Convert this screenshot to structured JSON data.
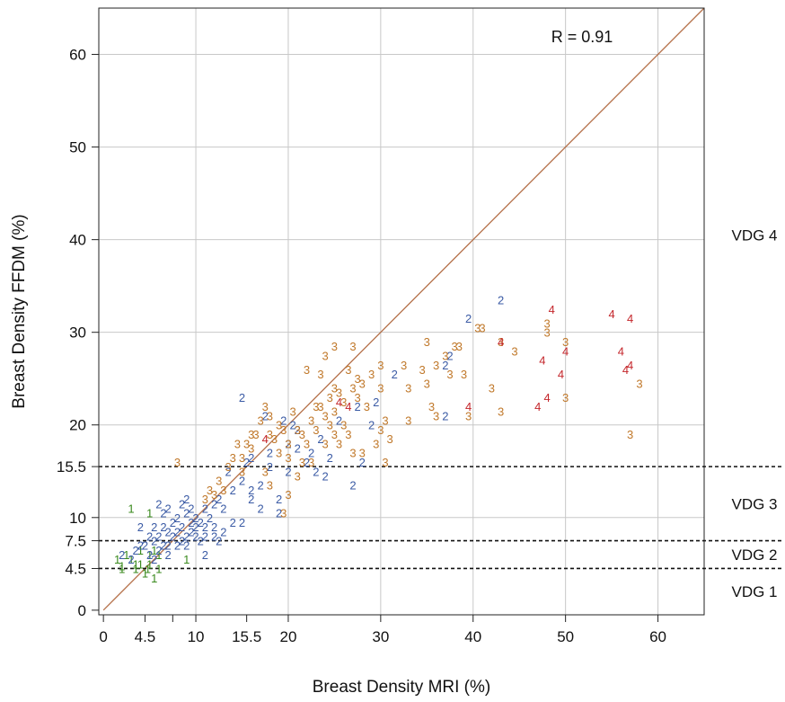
{
  "chart_data": {
    "type": "scatter",
    "xlabel": "Breast Density MRI (%)",
    "ylabel": "Breast Density FFDM (%)",
    "xlim": [
      -0.5,
      65
    ],
    "ylim": [
      -0.5,
      65
    ],
    "x_ticks": [
      {
        "value": 0,
        "label": "0"
      },
      {
        "value": 4.5,
        "label": "4.5"
      },
      {
        "value": 10,
        "label": "10"
      },
      {
        "value": 15.5,
        "label": "15.5"
      },
      {
        "value": 20,
        "label": "20"
      },
      {
        "value": 30,
        "label": "30"
      },
      {
        "value": 40,
        "label": "40"
      },
      {
        "value": 50,
        "label": "50"
      },
      {
        "value": 60,
        "label": "60"
      }
    ],
    "x_minor_ticks": [
      7.5
    ],
    "y_ticks": [
      {
        "value": 0,
        "label": "0"
      },
      {
        "value": 4.5,
        "label": "4.5"
      },
      {
        "value": 7.5,
        "label": "7.5"
      },
      {
        "value": 10,
        "label": "10"
      },
      {
        "value": 15.5,
        "label": "15.5"
      },
      {
        "value": 20,
        "label": "20"
      },
      {
        "value": 30,
        "label": "30"
      },
      {
        "value": 40,
        "label": "40"
      },
      {
        "value": 50,
        "label": "50"
      },
      {
        "value": 60,
        "label": "60"
      }
    ],
    "grid": true,
    "grid_x": [
      10,
      20,
      30,
      40,
      50,
      60
    ],
    "grid_y": [
      10,
      20,
      30,
      40,
      50,
      60
    ],
    "reference_line": {
      "from": [
        0,
        0
      ],
      "to": [
        65,
        65
      ],
      "color": "#b5714a"
    },
    "thresholds_y": [
      4.5,
      7.5,
      15.5
    ],
    "category_labels": [
      {
        "text": "VDG 4",
        "y": 40.5
      },
      {
        "text": "VDG 3",
        "y": 11.5
      },
      {
        "text": "VDG 2",
        "y": 6
      },
      {
        "text": "VDG 1",
        "y": 2
      }
    ],
    "annotation": "R = 0.91",
    "annotation_position": "top-right",
    "series": [
      {
        "name": "1",
        "color": "#3a8a1e",
        "points": [
          [
            1.5,
            5.5
          ],
          [
            2,
            4.8
          ],
          [
            2.5,
            6
          ],
          [
            3,
            5.5
          ],
          [
            3.5,
            4.5
          ],
          [
            3,
            11
          ],
          [
            4,
            6.5
          ],
          [
            4,
            5
          ],
          [
            4.5,
            4
          ],
          [
            5,
            6
          ],
          [
            5,
            5
          ],
          [
            5.5,
            3.5
          ],
          [
            5.5,
            6.5
          ],
          [
            6,
            4.5
          ],
          [
            5,
            10.5
          ],
          [
            9,
            5.5
          ],
          [
            2,
            4.5
          ],
          [
            4.8,
            4.5
          ],
          [
            6,
            6
          ],
          [
            3.5,
            5
          ]
        ]
      },
      {
        "name": "2",
        "color": "#3b5ba5",
        "points": [
          [
            2,
            6
          ],
          [
            3,
            5.5
          ],
          [
            3.5,
            6.5
          ],
          [
            4,
            9
          ],
          [
            4.5,
            7
          ],
          [
            5,
            6
          ],
          [
            5,
            8
          ],
          [
            5.5,
            9
          ],
          [
            5.5,
            7.5
          ],
          [
            6,
            8
          ],
          [
            6,
            6.5
          ],
          [
            6.5,
            10.5
          ],
          [
            6.5,
            9
          ],
          [
            6.5,
            7
          ],
          [
            7,
            8.5
          ],
          [
            7,
            7
          ],
          [
            7.5,
            9.5
          ],
          [
            7.5,
            8
          ],
          [
            8,
            10
          ],
          [
            8,
            8.5
          ],
          [
            8,
            7
          ],
          [
            8.5,
            9
          ],
          [
            8.5,
            7.5
          ],
          [
            9,
            10.5
          ],
          [
            9,
            8
          ],
          [
            9,
            7
          ],
          [
            9.5,
            9.5
          ],
          [
            9.5,
            8.5
          ],
          [
            9.5,
            11
          ],
          [
            10,
            10
          ],
          [
            10,
            8
          ],
          [
            10,
            9
          ],
          [
            10.5,
            9.5
          ],
          [
            10.5,
            7.5
          ],
          [
            11,
            11
          ],
          [
            11,
            9
          ],
          [
            11,
            8
          ],
          [
            11.5,
            10
          ],
          [
            12,
            9
          ],
          [
            12,
            8
          ],
          [
            12,
            11.5
          ],
          [
            12.5,
            12
          ],
          [
            13,
            11
          ],
          [
            13,
            8.5
          ],
          [
            14,
            9.5
          ],
          [
            6,
            11.5
          ],
          [
            7,
            11
          ],
          [
            8.5,
            11.5
          ],
          [
            9,
            12
          ],
          [
            11,
            6
          ],
          [
            12.5,
            7.5
          ],
          [
            15,
            9.5
          ],
          [
            5.5,
            5.5
          ],
          [
            7,
            6
          ],
          [
            4,
            7
          ],
          [
            15,
            14
          ],
          [
            16,
            13
          ],
          [
            16,
            12
          ],
          [
            17,
            13.5
          ],
          [
            18,
            17
          ],
          [
            19,
            12
          ],
          [
            19.5,
            20.5
          ],
          [
            20.5,
            20
          ],
          [
            21,
            19.5
          ],
          [
            20,
            18
          ],
          [
            21,
            17.5
          ],
          [
            22,
            16
          ],
          [
            22.5,
            17
          ],
          [
            23,
            15
          ],
          [
            23.5,
            18.5
          ],
          [
            24,
            14.5
          ],
          [
            24.5,
            16.5
          ],
          [
            25.5,
            20.5
          ],
          [
            27,
            13.5
          ],
          [
            27.5,
            22
          ],
          [
            28,
            16
          ],
          [
            29.5,
            22.5
          ],
          [
            29,
            20
          ],
          [
            31.5,
            25.5
          ],
          [
            15,
            23
          ],
          [
            37,
            26.5
          ],
          [
            37.5,
            27.5
          ],
          [
            37,
            21
          ],
          [
            39.5,
            31.5
          ],
          [
            43,
            33.5
          ],
          [
            16,
            16.5
          ],
          [
            17.5,
            21
          ],
          [
            13.5,
            15
          ],
          [
            19,
            10.5
          ],
          [
            20,
            15
          ],
          [
            14,
            13
          ],
          [
            15.5,
            16
          ],
          [
            17,
            11
          ],
          [
            18,
            15.5
          ]
        ]
      },
      {
        "name": "3",
        "color": "#c0782a",
        "points": [
          [
            8,
            16
          ],
          [
            11,
            12
          ],
          [
            11.5,
            13
          ],
          [
            12,
            12.5
          ],
          [
            12.5,
            14
          ],
          [
            14,
            16.5
          ],
          [
            14.5,
            18
          ],
          [
            15,
            15
          ],
          [
            15.5,
            18
          ],
          [
            16,
            17.5
          ],
          [
            16.5,
            19
          ],
          [
            17,
            20.5
          ],
          [
            17.5,
            22
          ],
          [
            17.5,
            15
          ],
          [
            18,
            19
          ],
          [
            18,
            21
          ],
          [
            18.5,
            18.5
          ],
          [
            19,
            20
          ],
          [
            19,
            17
          ],
          [
            19.5,
            19.5
          ],
          [
            19.5,
            10.5
          ],
          [
            20,
            16.5
          ],
          [
            20,
            12.5
          ],
          [
            20.5,
            21.5
          ],
          [
            21,
            19.5
          ],
          [
            21,
            14.5
          ],
          [
            21.5,
            16
          ],
          [
            22,
            18
          ],
          [
            22,
            26
          ],
          [
            22.5,
            20.5
          ],
          [
            22.5,
            16
          ],
          [
            23,
            19.5
          ],
          [
            23,
            22
          ],
          [
            23.5,
            25.5
          ],
          [
            24,
            21
          ],
          [
            24,
            18
          ],
          [
            24.5,
            23
          ],
          [
            24.5,
            20
          ],
          [
            25,
            24
          ],
          [
            25,
            19
          ],
          [
            25,
            21.5
          ],
          [
            25.5,
            23.5
          ],
          [
            25.5,
            18
          ],
          [
            26,
            22.5
          ],
          [
            26,
            20
          ],
          [
            26.5,
            26
          ],
          [
            26.5,
            19
          ],
          [
            27,
            28.5
          ],
          [
            27,
            17
          ],
          [
            27.5,
            25
          ],
          [
            27.5,
            23
          ],
          [
            28,
            24.5
          ],
          [
            28,
            17
          ],
          [
            28.5,
            22
          ],
          [
            29,
            25.5
          ],
          [
            29.5,
            18
          ],
          [
            30,
            26.5
          ],
          [
            30,
            24
          ],
          [
            30.5,
            20.5
          ],
          [
            30.5,
            16
          ],
          [
            31,
            18.5
          ],
          [
            32.5,
            26.5
          ],
          [
            33,
            24
          ],
          [
            33,
            20.5
          ],
          [
            34.5,
            26
          ],
          [
            35,
            29
          ],
          [
            35,
            24.5
          ],
          [
            35.5,
            22
          ],
          [
            36,
            21
          ],
          [
            37,
            27.5
          ],
          [
            37.5,
            25.5
          ],
          [
            38,
            28.5
          ],
          [
            38.5,
            28.5
          ],
          [
            39,
            25.5
          ],
          [
            39.5,
            21
          ],
          [
            40.5,
            30.5
          ],
          [
            41,
            30.5
          ],
          [
            42,
            24
          ],
          [
            43,
            21.5
          ],
          [
            43,
            29
          ],
          [
            44.5,
            28
          ],
          [
            48,
            31
          ],
          [
            48,
            30
          ],
          [
            50,
            29
          ],
          [
            50,
            23
          ],
          [
            57,
            19
          ],
          [
            58,
            24.5
          ],
          [
            36,
            26.5
          ],
          [
            25,
            28.5
          ],
          [
            24,
            27.5
          ],
          [
            13.5,
            15.5
          ],
          [
            16,
            19
          ],
          [
            23.5,
            22
          ],
          [
            27,
            24
          ],
          [
            21.5,
            19
          ],
          [
            30,
            19.5
          ],
          [
            13,
            13
          ],
          [
            15,
            16.5
          ],
          [
            18,
            13.5
          ],
          [
            20,
            18
          ]
        ]
      },
      {
        "name": "4",
        "color": "#c4262b",
        "points": [
          [
            17.5,
            18.5
          ],
          [
            25.5,
            22.5
          ],
          [
            26.5,
            22
          ],
          [
            39.5,
            22
          ],
          [
            43,
            29
          ],
          [
            47,
            22
          ],
          [
            47.5,
            27
          ],
          [
            48,
            23
          ],
          [
            48.5,
            32.5
          ],
          [
            49.5,
            25.5
          ],
          [
            50,
            28
          ],
          [
            55,
            32
          ],
          [
            56,
            28
          ],
          [
            56.5,
            26
          ],
          [
            57,
            31.5
          ],
          [
            57,
            26.5
          ]
        ]
      }
    ]
  }
}
